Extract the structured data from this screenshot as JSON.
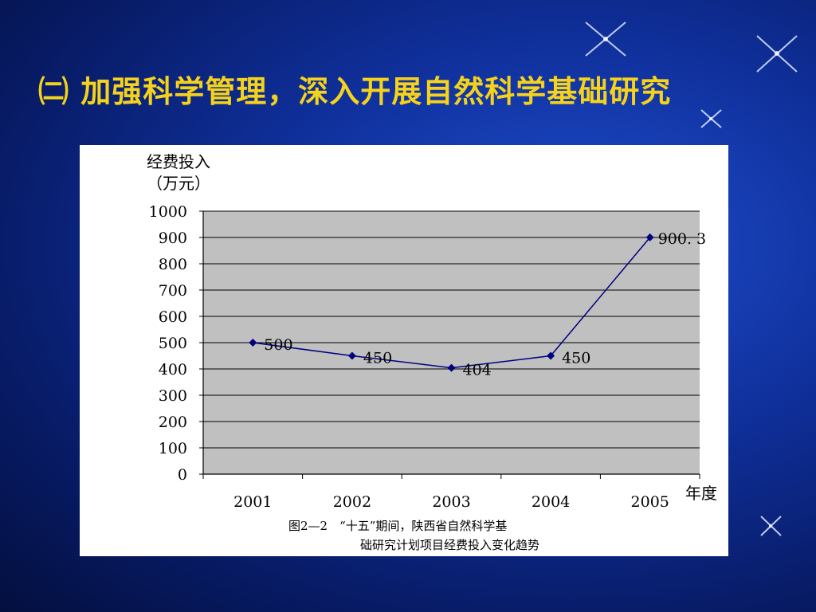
{
  "slide": {
    "title": "㈡ 加强科学管理，深入开展自然科学基础研究"
  },
  "chart_data": {
    "type": "line",
    "ylabel_line1": "经费投入",
    "ylabel_line2": "（万元）",
    "xlabel": "年度",
    "categories": [
      "2001",
      "2002",
      "2003",
      "2004",
      "2005"
    ],
    "values": [
      500,
      450,
      404,
      450,
      900.3
    ],
    "data_labels": [
      "500",
      "450",
      "404",
      "450",
      "900. 3"
    ],
    "yticks": [
      0,
      100,
      200,
      300,
      400,
      500,
      600,
      700,
      800,
      900,
      1000
    ],
    "ylim": [
      0,
      1000
    ],
    "grid": true,
    "legend": "none",
    "caption_line1": "图2—2　“十五”期间，陕西省自然科学基",
    "caption_line2": "础研究计划项目经费投入变化趋势",
    "colors": {
      "line": "#000080",
      "plot_bg": "#c0c0c0",
      "grid": "#000000"
    }
  }
}
